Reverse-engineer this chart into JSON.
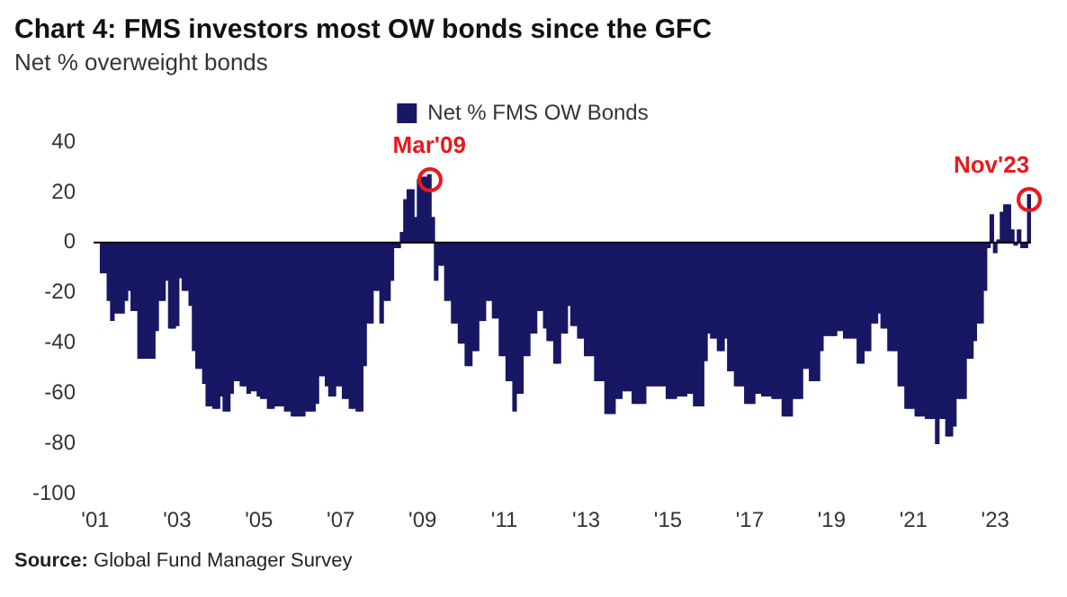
{
  "chart_data": {
    "type": "bar",
    "title": "Chart 4: FMS investors most OW bonds since the GFC",
    "subtitle": "Net % overweight bonds",
    "categories": [
      "'01",
      null,
      null,
      null,
      null,
      null,
      null,
      null,
      null,
      null,
      null,
      null,
      null,
      null,
      null,
      null,
      null,
      null,
      null,
      null,
      null,
      null,
      null,
      null,
      "'03",
      null,
      null,
      null,
      null,
      null,
      null,
      null,
      null,
      null,
      null,
      null,
      null,
      null,
      null,
      null,
      null,
      null,
      null,
      null,
      null,
      null,
      null,
      null,
      "'05",
      null,
      null,
      null,
      null,
      null,
      null,
      null,
      null,
      null,
      null,
      null,
      null,
      null,
      null,
      null,
      null,
      null,
      null,
      null,
      null,
      null,
      null,
      null,
      "'07",
      null,
      null,
      null,
      null,
      null,
      null,
      null,
      null,
      null,
      null,
      null,
      null,
      null,
      null,
      null,
      null,
      null,
      null,
      null,
      null,
      null,
      null,
      null,
      "'09",
      null,
      null,
      null,
      null,
      null,
      null,
      null,
      null,
      null,
      null,
      null,
      null,
      null,
      null,
      null,
      null,
      null,
      null,
      null,
      null,
      null,
      null,
      null,
      "'11",
      null,
      null,
      null,
      null,
      null,
      null,
      null,
      null,
      null,
      null,
      null,
      null,
      null,
      null,
      null,
      null,
      null,
      null,
      null,
      null,
      null,
      null,
      null,
      "'13",
      null,
      null,
      null,
      null,
      null,
      null,
      null,
      null,
      null,
      null,
      null,
      null,
      null,
      null,
      null,
      null,
      null,
      null,
      null,
      null,
      null,
      null,
      null,
      "'15",
      null,
      null,
      null,
      null,
      null,
      null,
      null,
      null,
      null,
      null,
      null,
      null,
      null,
      null,
      null,
      null,
      null,
      null,
      null,
      null,
      null,
      null,
      null,
      "'17",
      null,
      null,
      null,
      null,
      null,
      null,
      null,
      null,
      null,
      null,
      null,
      null,
      null,
      null,
      null,
      null,
      null,
      null,
      null,
      null,
      null,
      null,
      null,
      "'19",
      null,
      null,
      null,
      null,
      null,
      null,
      null,
      null,
      null,
      null,
      null,
      null,
      null,
      null,
      null,
      null,
      null,
      null,
      null,
      null,
      null,
      null,
      null,
      "'21",
      null,
      null,
      null,
      null,
      null,
      null,
      null,
      null,
      null,
      null,
      null,
      null,
      null,
      null,
      null,
      null,
      null,
      null,
      null,
      null,
      null,
      null,
      null,
      "'23",
      null,
      null,
      null,
      null,
      null,
      null,
      null,
      null,
      null,
      null
    ],
    "series": [
      {
        "name": "Net % FMS OW Bonds",
        "color": "#171763",
        "values": [
          null,
          null,
          -12,
          -12,
          -23,
          -31,
          -28,
          -28,
          -28,
          -23,
          -19,
          -27,
          -27,
          -46,
          -46,
          -46,
          -46,
          -46,
          -35,
          -23,
          -23,
          -15,
          -34,
          -34,
          -33,
          -14,
          -19,
          -19,
          -25,
          -43,
          -50,
          -50,
          -56,
          -65,
          -65,
          -66,
          -66,
          -61,
          -67,
          -67,
          -60,
          -55,
          -55,
          -57,
          -57,
          -60,
          -59,
          -59,
          -61,
          -62,
          -62,
          -66,
          -66,
          -65,
          -65,
          -65,
          -67,
          -67,
          -69,
          -69,
          -69,
          -69,
          -67,
          -67,
          -67,
          -64,
          -53,
          -53,
          -57,
          -61,
          -61,
          -57,
          -57,
          -62,
          -62,
          -66,
          -66,
          -67,
          -67,
          -49,
          -32,
          -32,
          -19,
          -19,
          -32,
          -23,
          -23,
          -15,
          -2,
          -2,
          4,
          17,
          21,
          21,
          10,
          25,
          26,
          26,
          27,
          10,
          -15,
          -9,
          -9,
          -23,
          -23,
          -32,
          -32,
          -40,
          -40,
          -49,
          -49,
          -43,
          -43,
          -31,
          -31,
          -23,
          -23,
          -30,
          -30,
          -45,
          -45,
          -55,
          -55,
          -67,
          -60,
          -60,
          -45,
          -45,
          -36,
          -36,
          -27,
          -27,
          -34,
          -39,
          -39,
          -48,
          -48,
          -36,
          -36,
          -25,
          -33,
          -33,
          -38,
          -38,
          -45,
          -45,
          -45,
          -55,
          -55,
          -55,
          -68,
          -68,
          -68,
          -62,
          -62,
          -59,
          -59,
          -59,
          -64,
          -64,
          -64,
          -64,
          -57,
          -57,
          -57,
          -57,
          -57,
          -57,
          -62,
          -62,
          -62,
          -61,
          -61,
          -61,
          -60,
          -60,
          -65,
          -65,
          -65,
          -47,
          -36,
          -38,
          -38,
          -43,
          -43,
          -38,
          -51,
          -51,
          -57,
          -57,
          -57,
          -64,
          -64,
          -64,
          -60,
          -60,
          -61,
          -61,
          -61,
          -62,
          -62,
          -62,
          -69,
          -69,
          -69,
          -62,
          -62,
          -62,
          -50,
          -50,
          -55,
          -55,
          -55,
          -43,
          -37,
          -37,
          -37,
          -37,
          -35,
          -35,
          -38,
          -38,
          -38,
          -38,
          -48,
          -48,
          -43,
          -43,
          -32,
          -32,
          -28,
          -34,
          -34,
          -43,
          -43,
          -43,
          -57,
          -57,
          -66,
          -66,
          -66,
          -69,
          -69,
          -69,
          -70,
          -70,
          -70,
          -80,
          -70,
          -70,
          -77,
          -77,
          -73,
          -62,
          -62,
          -62,
          -46,
          -46,
          -39,
          -32,
          -32,
          -19,
          -2,
          11,
          -4,
          1,
          12,
          15,
          15,
          5,
          -1,
          5,
          -2,
          -2,
          19
        ]
      }
    ],
    "ylim": [
      -100,
      40
    ],
    "yticks": [
      -100,
      -80,
      -60,
      -40,
      -20,
      0,
      20,
      40
    ],
    "grid": false,
    "legend": "top",
    "ref_lines": [
      {
        "axis": "y",
        "value": 0,
        "color": "#000000"
      }
    ],
    "annotations": [
      "Mar'09",
      "Nov'23",
      "Source: Global Fund Manager Survey"
    ]
  }
}
